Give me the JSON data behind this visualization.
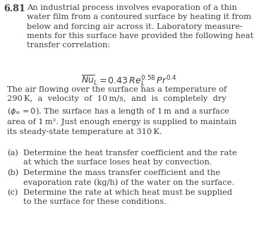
{
  "background_color": "#ffffff",
  "text_color": "#3a3a3a",
  "figure_width": 3.67,
  "figure_height": 3.26,
  "dpi": 100,
  "problem_number": "6.81",
  "intro_text": "An industrial process involves evaporation of a thin\nwater film from a contoured surface by heating it from\nbelow and forcing air across it. Laboratory measure-\nments for this surface have provided the following heat\ntransfer correlation:",
  "equation": "$\\overline{Nu}_L = 0.43\\,Re_L^{0.58}\\,Pr^{0.4}$",
  "body_text": "The air flowing over the surface has a temperature of\n290 K,  a  velocity  of  10 m/s,  and  is  completely  dry\n($\\phi_\\infty = 0$). The surface has a length of 1 m and a surface\narea of 1 m². Just enough energy is supplied to maintain\nits steady-state temperature at 310 K.",
  "part_a_label": "(a)",
  "part_a_text": "Determine the heat transfer coefficient and the rate\nat which the surface loses heat by convection.",
  "part_b_label": "(b)",
  "part_b_text": "Determine the mass transfer coefficient and the\nevaporation rate (kg/h) of the water on the surface.",
  "part_c_label": "(c)",
  "part_c_text": "Determine the rate at which heat must be supplied\nto the surface for these conditions.",
  "font_size": 8.2,
  "font_size_eq": 9.0,
  "font_size_num": 9.2
}
